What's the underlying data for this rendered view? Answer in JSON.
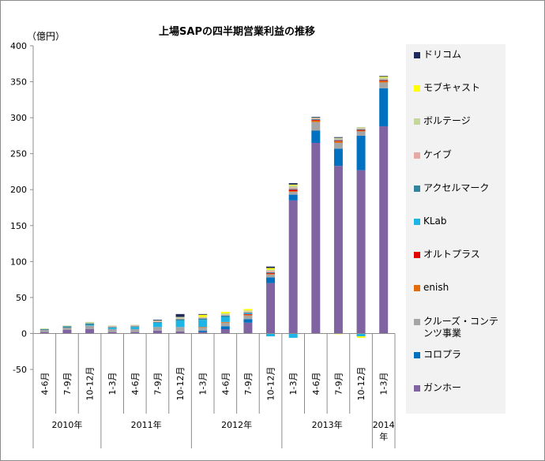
{
  "title": "上場SAPの四半期営業利益の推移",
  "unit_label": "（億円）",
  "chart_data": {
    "type": "bar",
    "stacked": true,
    "title": "上場SAPの四半期営業利益の推移",
    "ylabel": "（億円）",
    "ylim": [
      -50,
      400
    ],
    "yticks": [
      -50,
      0,
      50,
      100,
      150,
      200,
      250,
      300,
      350,
      400
    ],
    "grid": false,
    "legend_position": "right",
    "categories": [
      "4-6月",
      "7-9月",
      "10-12月",
      "1-3月",
      "4-6月",
      "7-9月",
      "10-12月",
      "1-3月",
      "4-6月",
      "7-9月",
      "10-12月",
      "1-3月",
      "4-6月",
      "7-9月",
      "10-12月",
      "1-3月"
    ],
    "year_groups": [
      {
        "label": "2010年",
        "count": 3
      },
      {
        "label": "2011年",
        "count": 4
      },
      {
        "label": "2012年",
        "count": 4
      },
      {
        "label": "2013年",
        "count": 4
      },
      {
        "label": "2014年",
        "count": 1
      }
    ],
    "series": [
      {
        "name": "ガンホー",
        "color": "#8064a2",
        "values": [
          2,
          5,
          6,
          2,
          2,
          4,
          3,
          2,
          6,
          15,
          70,
          185,
          265,
          233,
          227,
          288
        ]
      },
      {
        "name": "コロプラ",
        "color": "#0070c0",
        "values": [
          0,
          0,
          0,
          0,
          0,
          0,
          0,
          2,
          4,
          5,
          8,
          8,
          17,
          24,
          48,
          53
        ]
      },
      {
        "name": "クルーズ・コンテンツ事業",
        "color": "#a5a5a5",
        "values": [
          3,
          3,
          5,
          4,
          4,
          5,
          6,
          4,
          5,
          5,
          4,
          4,
          12,
          8,
          6,
          8
        ]
      },
      {
        "name": "enish",
        "color": "#e36c09",
        "values": [
          0,
          0,
          0,
          0,
          0,
          0,
          0,
          1,
          1,
          1,
          1,
          1,
          2,
          2,
          1,
          2
        ]
      },
      {
        "name": "オルトプラス",
        "color": "#e00000",
        "values": [
          0,
          0,
          0,
          0,
          0,
          0,
          0,
          0,
          0,
          1,
          1,
          2,
          1,
          1,
          1,
          1
        ]
      },
      {
        "name": "KLab",
        "color": "#1cb5e6",
        "values": [
          0,
          0,
          1,
          2,
          3,
          6,
          9,
          10,
          7,
          1,
          -4,
          -6,
          0,
          0,
          -4,
          0
        ]
      },
      {
        "name": "アクセルマーク",
        "color": "#31859c",
        "values": [
          1,
          2,
          2,
          1,
          1,
          1,
          2,
          2,
          2,
          1,
          1,
          1,
          1,
          1,
          1,
          1
        ]
      },
      {
        "name": "ケイブ",
        "color": "#e6a9a6",
        "values": [
          0,
          0,
          0,
          1,
          1,
          1,
          1,
          1,
          1,
          1,
          2,
          2,
          1,
          1,
          1,
          1
        ]
      },
      {
        "name": "ボルテージ",
        "color": "#c3d69b",
        "values": [
          1,
          1,
          2,
          1,
          1,
          1,
          2,
          1,
          2,
          2,
          2,
          3,
          1,
          2,
          2,
          2
        ]
      },
      {
        "name": "モブキャスト",
        "color": "#ffff00",
        "values": [
          0,
          0,
          0,
          0,
          0,
          0,
          0,
          3,
          2,
          2,
          2,
          1,
          0,
          -1,
          -2,
          1
        ]
      },
      {
        "name": "ドリコム",
        "color": "#1f2a5c",
        "values": [
          0,
          0,
          0,
          0,
          0,
          1,
          4,
          1,
          0,
          0,
          2,
          2,
          1,
          1,
          0,
          1
        ]
      }
    ]
  }
}
